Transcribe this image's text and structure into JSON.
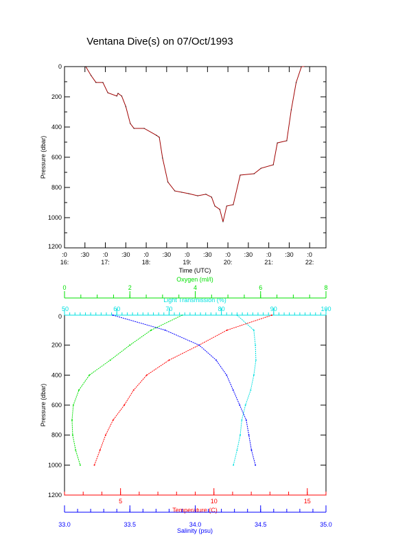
{
  "chart_data": [
    {
      "type": "line",
      "title": "Ventana Dive(s) on 07/Oct/1993",
      "xlabel": "Time (UTC)",
      "ylabel": "Pressure (dbar)",
      "xlim": [
        16,
        22.4
      ],
      "ylim": [
        1200,
        0
      ],
      "x_ticks": [
        {
          "v": 16,
          "top": ":0",
          "bottom": "16:"
        },
        {
          "v": 16.5,
          "top": ":30",
          "bottom": ""
        },
        {
          "v": 17,
          "top": ":0",
          "bottom": "17:"
        },
        {
          "v": 17.5,
          "top": ":30",
          "bottom": ""
        },
        {
          "v": 18,
          "top": ":0",
          "bottom": "18:"
        },
        {
          "v": 18.5,
          "top": ":30",
          "bottom": ""
        },
        {
          "v": 19,
          "top": ":0",
          "bottom": "19:"
        },
        {
          "v": 19.5,
          "top": ":30",
          "bottom": ""
        },
        {
          "v": 20,
          "top": ":0",
          "bottom": "20:"
        },
        {
          "v": 20.5,
          "top": ":30",
          "bottom": ""
        },
        {
          "v": 21,
          "top": ":0",
          "bottom": "21:"
        },
        {
          "v": 21.5,
          "top": ":30",
          "bottom": ""
        },
        {
          "v": 22,
          "top": ":0",
          "bottom": "22:"
        }
      ],
      "y_ticks": [
        "0",
        "200",
        "400",
        "600",
        "800",
        "1000",
        "1200"
      ],
      "series": [
        {
          "name": "Pressure",
          "color": "#a00000",
          "x": [
            16.52,
            16.65,
            16.77,
            16.94,
            17.06,
            17.28,
            17.31,
            17.4,
            17.5,
            17.61,
            17.7,
            17.95,
            18.25,
            18.32,
            18.4,
            18.53,
            18.7,
            18.87,
            19.04,
            19.26,
            19.46,
            19.6,
            19.68,
            19.8,
            19.88,
            19.97,
            20.13,
            20.3,
            20.64,
            20.81,
            21.11,
            21.21,
            21.44,
            21.55,
            21.67,
            21.8,
            21.88
          ],
          "y": [
            0,
            59,
            105,
            105,
            173,
            195,
            177,
            195,
            264,
            377,
            409,
            409,
            455,
            468,
            605,
            764,
            823,
            832,
            841,
            855,
            845,
            864,
            923,
            945,
            1027,
            923,
            914,
            718,
            709,
            673,
            650,
            505,
            491,
            286,
            105,
            0,
            0
          ]
        }
      ]
    },
    {
      "type": "line",
      "ylabel": "Pressure (dbar)",
      "ylim": [
        1200,
        0
      ],
      "y_ticks": [
        "0",
        "200",
        "400",
        "600",
        "800",
        "1000",
        "1200"
      ],
      "depth": [
        0,
        100,
        200,
        300,
        400,
        500,
        600,
        700,
        800,
        900,
        1000
      ],
      "axes": [
        {
          "key": "oxygen",
          "label": "Oxygen (ml/l)",
          "color": "#00e000",
          "range": [
            0,
            8
          ],
          "ticks": [
            "0",
            "2",
            "4",
            "6",
            "8"
          ],
          "values": [
            3.6,
            2.65,
            2.0,
            1.4,
            0.76,
            0.44,
            0.27,
            0.23,
            0.25,
            0.34,
            0.48
          ]
        },
        {
          "key": "light",
          "label": "Light Transmission (%)",
          "color": "#00e0e0",
          "range": [
            50,
            100
          ],
          "ticks": [
            "50",
            "60",
            "70",
            "80",
            "90",
            "100"
          ],
          "values": [
            83,
            86.2,
            86.5,
            86.6,
            86.2,
            85.6,
            84.6,
            83.9,
            83.6,
            83,
            82.3
          ]
        },
        {
          "key": "temperature",
          "label": "Temperature (C)",
          "color": "#ff0000",
          "range": [
            2,
            16
          ],
          "ticks": [
            "5",
            "10",
            "15"
          ],
          "values": [
            13.1,
            10.7,
            9.2,
            7.6,
            6.4,
            5.7,
            5.2,
            4.6,
            4.2,
            3.9,
            3.6
          ]
        },
        {
          "key": "salinity",
          "label": "Salinity (psu)",
          "color": "#0000ff",
          "range": [
            33,
            35
          ],
          "ticks": [
            "33.0",
            "33.5",
            "34.0",
            "34.5",
            "35.0"
          ],
          "values": [
            33.37,
            33.77,
            34.03,
            34.16,
            34.24,
            34.29,
            34.34,
            34.39,
            34.41,
            34.43,
            34.46
          ]
        }
      ]
    }
  ]
}
